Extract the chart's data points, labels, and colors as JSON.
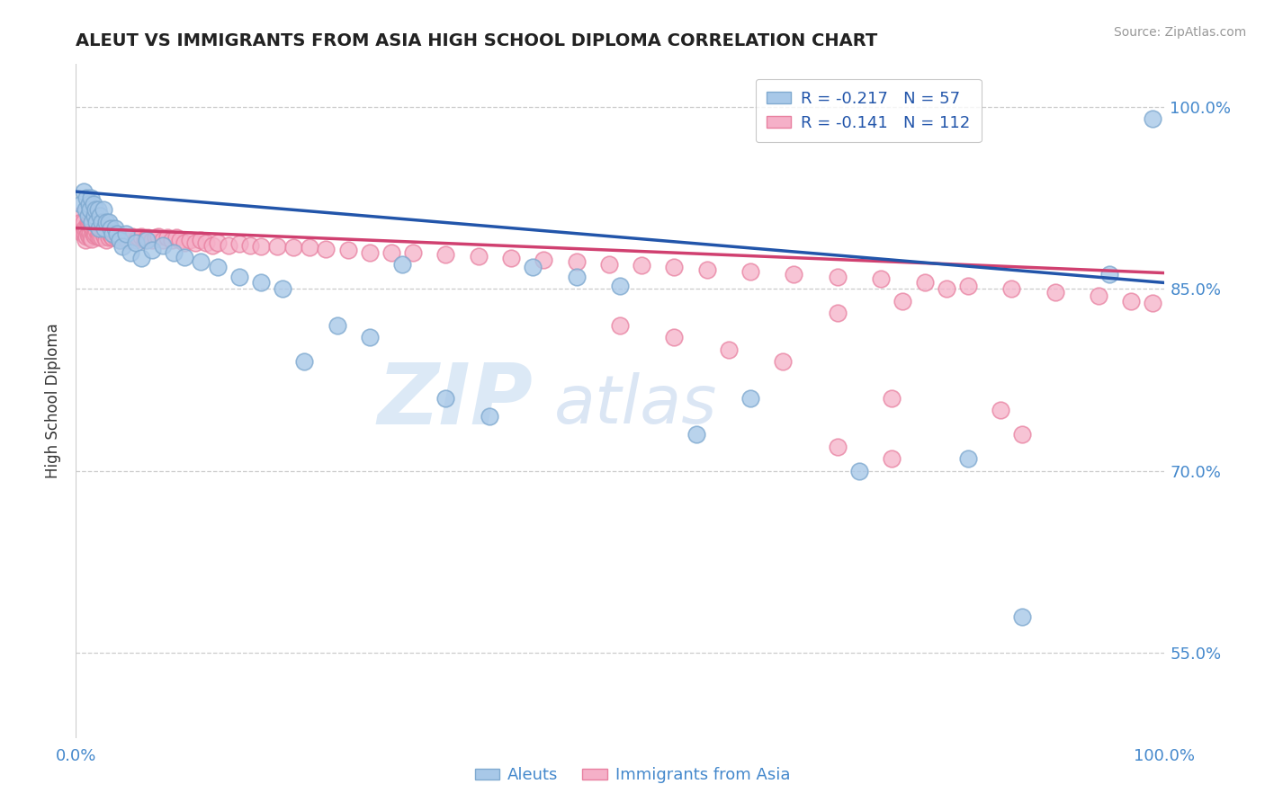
{
  "title": "ALEUT VS IMMIGRANTS FROM ASIA HIGH SCHOOL DIPLOMA CORRELATION CHART",
  "source_text": "Source: ZipAtlas.com",
  "ylabel": "High School Diploma",
  "x_min": 0.0,
  "x_max": 1.0,
  "y_min": 0.48,
  "y_max": 1.035,
  "y_ticks": [
    0.55,
    0.7,
    0.85,
    1.0
  ],
  "y_tick_labels": [
    "55.0%",
    "70.0%",
    "85.0%",
    "100.0%"
  ],
  "x_tick_labels": [
    "0.0%",
    "100.0%"
  ],
  "x_ticks": [
    0.0,
    1.0
  ],
  "aleut_color": "#a8c8e8",
  "asia_color": "#f5b0c8",
  "aleut_edge_color": "#80aad0",
  "asia_edge_color": "#e880a0",
  "blue_line_color": "#2255aa",
  "pink_line_color": "#d04070",
  "legend_R_aleut": "R = -0.217",
  "legend_N_aleut": "N = 57",
  "legend_R_asia": "R = -0.141",
  "legend_N_asia": "N = 112",
  "watermark_zip": "ZIP",
  "watermark_atlas": "atlas",
  "background_color": "#ffffff",
  "grid_color": "#cccccc",
  "tick_color": "#4488cc",
  "title_color": "#222222",
  "aleut_x": [
    0.005,
    0.007,
    0.009,
    0.01,
    0.011,
    0.012,
    0.013,
    0.014,
    0.015,
    0.016,
    0.017,
    0.018,
    0.019,
    0.02,
    0.021,
    0.022,
    0.024,
    0.025,
    0.026,
    0.028,
    0.03,
    0.032,
    0.034,
    0.036,
    0.038,
    0.04,
    0.043,
    0.046,
    0.05,
    0.055,
    0.06,
    0.065,
    0.07,
    0.08,
    0.09,
    0.1,
    0.115,
    0.13,
    0.15,
    0.17,
    0.19,
    0.21,
    0.24,
    0.27,
    0.3,
    0.34,
    0.38,
    0.42,
    0.46,
    0.5,
    0.57,
    0.62,
    0.72,
    0.82,
    0.87,
    0.95,
    0.99
  ],
  "aleut_y": [
    0.92,
    0.93,
    0.915,
    0.925,
    0.91,
    0.92,
    0.915,
    0.925,
    0.905,
    0.92,
    0.91,
    0.915,
    0.905,
    0.915,
    0.9,
    0.91,
    0.905,
    0.915,
    0.9,
    0.905,
    0.905,
    0.9,
    0.895,
    0.9,
    0.895,
    0.89,
    0.885,
    0.895,
    0.88,
    0.888,
    0.875,
    0.89,
    0.882,
    0.886,
    0.88,
    0.876,
    0.872,
    0.868,
    0.86,
    0.855,
    0.85,
    0.79,
    0.82,
    0.81,
    0.87,
    0.76,
    0.745,
    0.868,
    0.86,
    0.852,
    0.73,
    0.76,
    0.7,
    0.71,
    0.58,
    0.862,
    0.99
  ],
  "asia_x": [
    0.003,
    0.004,
    0.005,
    0.006,
    0.007,
    0.008,
    0.008,
    0.009,
    0.01,
    0.01,
    0.011,
    0.011,
    0.012,
    0.012,
    0.013,
    0.013,
    0.014,
    0.014,
    0.015,
    0.015,
    0.016,
    0.017,
    0.017,
    0.018,
    0.019,
    0.02,
    0.021,
    0.022,
    0.023,
    0.024,
    0.025,
    0.026,
    0.027,
    0.028,
    0.03,
    0.031,
    0.033,
    0.034,
    0.036,
    0.037,
    0.039,
    0.04,
    0.042,
    0.044,
    0.046,
    0.048,
    0.05,
    0.052,
    0.055,
    0.058,
    0.06,
    0.063,
    0.066,
    0.07,
    0.073,
    0.076,
    0.08,
    0.084,
    0.088,
    0.092,
    0.096,
    0.1,
    0.105,
    0.11,
    0.115,
    0.12,
    0.125,
    0.13,
    0.14,
    0.15,
    0.16,
    0.17,
    0.185,
    0.2,
    0.215,
    0.23,
    0.25,
    0.27,
    0.29,
    0.31,
    0.34,
    0.37,
    0.4,
    0.43,
    0.46,
    0.49,
    0.52,
    0.55,
    0.58,
    0.62,
    0.66,
    0.7,
    0.74,
    0.78,
    0.82,
    0.86,
    0.9,
    0.94,
    0.97,
    0.99,
    0.5,
    0.55,
    0.6,
    0.65,
    0.7,
    0.75,
    0.7,
    0.75,
    0.76,
    0.8,
    0.85,
    0.87
  ],
  "asia_y": [
    0.91,
    0.9,
    0.905,
    0.895,
    0.905,
    0.895,
    0.9,
    0.89,
    0.9,
    0.893,
    0.895,
    0.905,
    0.893,
    0.903,
    0.896,
    0.906,
    0.892,
    0.902,
    0.891,
    0.901,
    0.895,
    0.894,
    0.904,
    0.895,
    0.898,
    0.893,
    0.895,
    0.892,
    0.898,
    0.892,
    0.895,
    0.893,
    0.896,
    0.89,
    0.892,
    0.895,
    0.893,
    0.892,
    0.893,
    0.895,
    0.892,
    0.89,
    0.892,
    0.893,
    0.892,
    0.89,
    0.892,
    0.893,
    0.89,
    0.892,
    0.893,
    0.89,
    0.892,
    0.89,
    0.892,
    0.893,
    0.89,
    0.892,
    0.89,
    0.892,
    0.89,
    0.888,
    0.89,
    0.888,
    0.89,
    0.888,
    0.886,
    0.888,
    0.886,
    0.887,
    0.886,
    0.885,
    0.885,
    0.884,
    0.884,
    0.883,
    0.882,
    0.88,
    0.88,
    0.88,
    0.878,
    0.877,
    0.875,
    0.874,
    0.872,
    0.87,
    0.869,
    0.868,
    0.866,
    0.864,
    0.862,
    0.86,
    0.858,
    0.855,
    0.852,
    0.85,
    0.847,
    0.844,
    0.84,
    0.838,
    0.82,
    0.81,
    0.8,
    0.79,
    0.83,
    0.76,
    0.72,
    0.71,
    0.84,
    0.85,
    0.75,
    0.73
  ]
}
